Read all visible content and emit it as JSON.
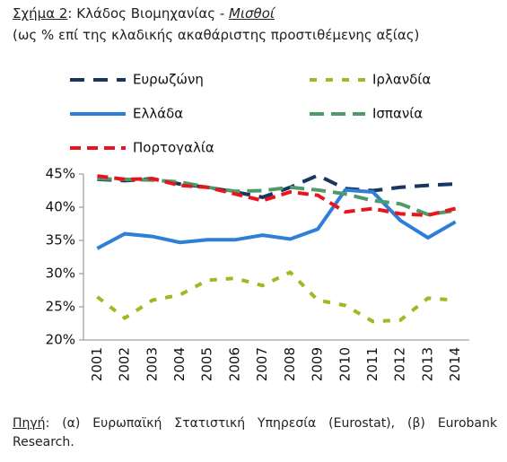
{
  "title_parts": [
    "Σχήμα 2",
    ": Κλάδος Βιομηχανίας - ",
    "Μισθοί"
  ],
  "subtitle": "(ως % επί της κλαδικής ακαθάριστης προστιθέμενης αξίας)",
  "source_label": "Πηγή",
  "source": ": (α) Ευρωπαϊκή Στατιστική Υπηρεσία (Eurostat), (β) Eurobank Research.",
  "chart_data": {
    "type": "line",
    "categories": [
      "2001",
      "2002",
      "2003",
      "2004",
      "2005",
      "2006",
      "2007",
      "2008",
      "2009",
      "2010",
      "2011",
      "2012",
      "2013",
      "2014"
    ],
    "series": [
      {
        "name": "Ευρωζώνη",
        "color": "#17375e",
        "values": [
          44.2,
          44.0,
          44.3,
          43.5,
          43.0,
          42.3,
          41.5,
          43.0,
          44.8,
          42.8,
          42.5,
          43.0,
          43.3,
          43.5
        ]
      },
      {
        "name": "Ιρλανδία",
        "color": "#9bbb22",
        "values": [
          26.5,
          23.3,
          26.0,
          26.8,
          29.0,
          29.3,
          28.2,
          30.2,
          26.0,
          25.2,
          22.8,
          23.0,
          26.3,
          26.0
        ]
      },
      {
        "name": "Ελλάδα",
        "color": "#2f7fd8",
        "values": [
          33.8,
          36.0,
          35.6,
          34.7,
          35.1,
          35.1,
          35.8,
          35.2,
          36.7,
          42.6,
          42.3,
          38.0,
          35.4,
          37.8
        ]
      },
      {
        "name": "Ισπανία",
        "color": "#4f9a6a",
        "values": [
          44.3,
          44.2,
          44.1,
          43.8,
          43.0,
          42.4,
          42.5,
          43.0,
          42.6,
          42.0,
          41.0,
          40.5,
          38.9,
          39.5
        ]
      },
      {
        "name": "Πορτογαλία",
        "color": "#e8161c",
        "values": [
          44.7,
          44.2,
          44.3,
          43.3,
          43.0,
          42.0,
          41.0,
          42.3,
          41.8,
          39.3,
          39.8,
          39.0,
          38.8,
          39.8
        ]
      }
    ],
    "ylim": [
      20,
      45
    ],
    "yticks": [
      {
        "value": 20,
        "label": "20%"
      },
      {
        "value": 25,
        "label": "25%"
      },
      {
        "value": 30,
        "label": "30%"
      },
      {
        "value": 35,
        "label": "35%"
      },
      {
        "value": 40,
        "label": "40%"
      },
      {
        "value": 45,
        "label": "45%"
      }
    ],
    "grid": false
  }
}
